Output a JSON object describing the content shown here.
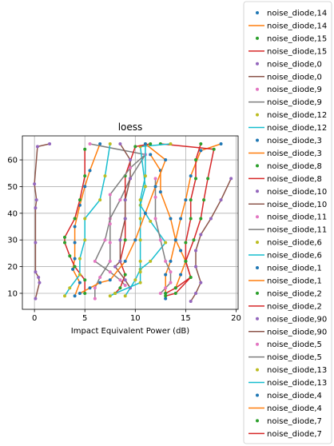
{
  "chart_data": {
    "type": "line",
    "title": "loess",
    "xlabel": "Impact Equivalent Power (dB)",
    "ylabel": "",
    "xlim": [
      -1.2,
      20.2
    ],
    "ylim": [
      4,
      69
    ],
    "xticks": [
      0,
      5,
      10,
      15,
      20
    ],
    "yticks": [
      10,
      20,
      30,
      40,
      50,
      60
    ],
    "grid": true,
    "legend_position": "right",
    "colors": {
      "blue": "#1f77b4",
      "orange": "#ff7f0e",
      "green": "#2ca02c",
      "red": "#d62728",
      "purple": "#9467bd",
      "brown": "#8c564b",
      "pink": "#e377c2",
      "gray": "#7f7f7f",
      "olive": "#bcbd22",
      "cyan": "#17becf"
    },
    "series": [
      {
        "name": "noise_diode,14",
        "marker_color": "blue",
        "line_color": "orange",
        "points": [
          [
            18.5,
            66
          ],
          [
            16.5,
            63.5
          ],
          [
            15.5,
            54
          ],
          [
            15,
            45
          ],
          [
            14.5,
            38
          ],
          [
            14,
            30
          ],
          [
            13.5,
            22
          ],
          [
            13,
            17
          ],
          [
            13,
            10
          ],
          [
            13,
            8
          ]
        ]
      },
      {
        "name": "noise_diode,15",
        "marker_color": "green",
        "line_color": "red",
        "points": [
          [
            12.5,
            66
          ],
          [
            17.8,
            64
          ],
          [
            17.2,
            53
          ],
          [
            16.8,
            45
          ],
          [
            16.5,
            38
          ],
          [
            15.8,
            30
          ],
          [
            15,
            22
          ],
          [
            15.5,
            16
          ],
          [
            14,
            10
          ],
          [
            13,
            9
          ]
        ]
      },
      {
        "name": "noise_diode,0",
        "marker_color": "purple",
        "line_color": "brown",
        "points": [
          [
            1.5,
            66
          ],
          [
            0.3,
            65
          ],
          [
            0,
            51
          ],
          [
            0.2,
            45
          ],
          [
            0.1,
            42
          ],
          [
            0.1,
            29
          ],
          [
            0.1,
            18
          ],
          [
            0.4,
            16
          ],
          [
            0.5,
            14
          ],
          [
            0.1,
            8
          ]
        ]
      },
      {
        "name": "noise_diode,9",
        "marker_color": "pink",
        "line_color": "gray",
        "points": [
          [
            5.5,
            66
          ],
          [
            11,
            62
          ],
          [
            9.5,
            53
          ],
          [
            8.5,
            45
          ],
          [
            7.5,
            38
          ],
          [
            7,
            30
          ],
          [
            6,
            22
          ],
          [
            7.5,
            18
          ],
          [
            8.5,
            15
          ],
          [
            9,
            13
          ]
        ]
      },
      {
        "name": "noise_diode,12",
        "marker_color": "olive",
        "line_color": "cyan",
        "points": [
          [
            13.5,
            66
          ],
          [
            10.5,
            65
          ],
          [
            11,
            50
          ],
          [
            10.5,
            43
          ],
          [
            11.5,
            37
          ],
          [
            13,
            29
          ],
          [
            11.5,
            22
          ],
          [
            10.5,
            19
          ],
          [
            10,
            15
          ],
          [
            9,
            9
          ]
        ]
      },
      {
        "name": "noise_diode,3",
        "marker_color": "blue",
        "line_color": "orange",
        "points": [
          [
            6.5,
            66
          ],
          [
            5.5,
            56
          ],
          [
            5,
            50
          ],
          [
            4.5,
            43
          ],
          [
            4,
            35
          ],
          [
            4,
            29
          ],
          [
            4,
            23
          ],
          [
            3.8,
            19
          ],
          [
            4.5,
            14
          ],
          [
            4,
            9
          ]
        ]
      },
      {
        "name": "noise_diode,8",
        "marker_color": "green",
        "line_color": "red",
        "points": [
          [
            5,
            64
          ],
          [
            5,
            54
          ],
          [
            4.5,
            45
          ],
          [
            4,
            38
          ],
          [
            3,
            31
          ],
          [
            3,
            29
          ],
          [
            3.5,
            24
          ],
          [
            4,
            20
          ],
          [
            5,
            15
          ],
          [
            5,
            10
          ]
        ]
      },
      {
        "name": "noise_diode,10",
        "marker_color": "purple",
        "line_color": "brown",
        "points": [
          [
            19.5,
            53
          ],
          [
            18.5,
            45
          ],
          [
            17.5,
            38
          ],
          [
            16.5,
            32
          ],
          [
            16,
            26
          ],
          [
            16,
            20
          ],
          [
            16.5,
            14
          ],
          [
            16,
            10
          ],
          [
            15.5,
            7
          ]
        ]
      },
      {
        "name": "noise_diode,11",
        "marker_color": "pink",
        "line_color": "gray",
        "points": [
          [
            12,
            53
          ],
          [
            12,
            46
          ],
          [
            12,
            38
          ],
          [
            12.5,
            30
          ],
          [
            13,
            22
          ],
          [
            13.5,
            18
          ],
          [
            13.5,
            14
          ],
          [
            13,
            12
          ],
          [
            12.5,
            10
          ]
        ]
      },
      {
        "name": "noise_diode,6",
        "marker_color": "olive",
        "line_color": "cyan",
        "points": [
          [
            7.5,
            66
          ],
          [
            7,
            54
          ],
          [
            6.5,
            45
          ],
          [
            5,
            38
          ],
          [
            5,
            30
          ],
          [
            4.5,
            23
          ],
          [
            4.5,
            17
          ],
          [
            3.5,
            12
          ],
          [
            3,
            9
          ]
        ]
      },
      {
        "name": "noise_diode,1",
        "marker_color": "blue",
        "line_color": "orange",
        "points": [
          [
            11.5,
            62
          ],
          [
            12.5,
            56
          ],
          [
            12.5,
            48
          ],
          [
            13.5,
            38
          ],
          [
            14,
            30
          ],
          [
            14.5,
            26
          ],
          [
            15,
            22
          ],
          [
            14.5,
            17
          ],
          [
            14,
            12
          ]
        ]
      },
      {
        "name": "noise_diode,2",
        "marker_color": "green",
        "line_color": "red",
        "points": [
          [
            11.5,
            66
          ],
          [
            10,
            65
          ],
          [
            9,
            54
          ],
          [
            9,
            45
          ],
          [
            9,
            38
          ],
          [
            9,
            30
          ],
          [
            8.5,
            22
          ],
          [
            9,
            17
          ],
          [
            8.5,
            12
          ],
          [
            8,
            10
          ]
        ]
      },
      {
        "name": "noise_diode,90",
        "marker_color": "purple",
        "line_color": "brown",
        "points": [
          [
            8.5,
            66
          ],
          [
            9.5,
            60
          ],
          [
            9.5,
            53
          ],
          [
            9,
            45
          ],
          [
            9,
            38
          ],
          [
            8.5,
            30
          ],
          [
            8.5,
            22
          ],
          [
            8,
            20
          ],
          [
            9,
            15
          ],
          [
            9.5,
            12
          ]
        ]
      },
      {
        "name": "noise_diode,5",
        "marker_color": "pink",
        "line_color": "gray",
        "points": [
          [
            11,
            62
          ],
          [
            9.5,
            57
          ],
          [
            7.5,
            47
          ],
          [
            7.5,
            36
          ],
          [
            7.5,
            29
          ],
          [
            7.5,
            22
          ],
          [
            6.5,
            16
          ],
          [
            6,
            12
          ],
          [
            6,
            8
          ]
        ]
      },
      {
        "name": "noise_diode,13",
        "marker_color": "olive",
        "line_color": "cyan",
        "points": [
          [
            11,
            66
          ],
          [
            11,
            54
          ],
          [
            10.5,
            45
          ],
          [
            10.5,
            38
          ],
          [
            10.5,
            30
          ],
          [
            10.5,
            22
          ],
          [
            10.5,
            18
          ],
          [
            10.5,
            14
          ],
          [
            8,
            10
          ],
          [
            7.5,
            9
          ]
        ]
      },
      {
        "name": "noise_diode,4",
        "marker_color": "blue",
        "line_color": "orange",
        "points": [
          [
            11,
            66
          ],
          [
            13,
            60
          ],
          [
            12,
            50
          ],
          [
            11,
            40
          ],
          [
            10,
            30
          ],
          [
            9,
            22
          ],
          [
            7.5,
            15
          ],
          [
            6.5,
            14
          ],
          [
            5.5,
            12
          ],
          [
            4.5,
            10
          ]
        ]
      },
      {
        "name": "noise_diode,7",
        "marker_color": "green",
        "line_color": "red",
        "points": [
          [
            16.5,
            66
          ],
          [
            16,
            60
          ],
          [
            16,
            53
          ],
          [
            15.5,
            45
          ],
          [
            15.5,
            38
          ],
          [
            15,
            29
          ],
          [
            15,
            22
          ],
          [
            15.5,
            16
          ],
          [
            14,
            12
          ],
          [
            13,
            10
          ]
        ]
      }
    ]
  }
}
